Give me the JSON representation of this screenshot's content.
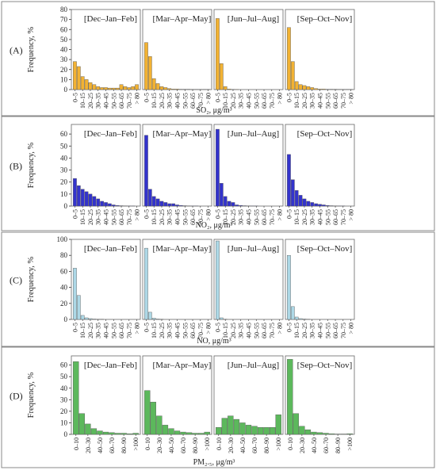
{
  "chart_data": [
    {
      "type": "bar",
      "row_label": "(A)",
      "xlabel": "SO₂, μg/m³",
      "ylabel": "Frequency, %",
      "ylim": [
        0,
        80
      ],
      "yticks": [
        0,
        10,
        20,
        30,
        40,
        50,
        60,
        70,
        80
      ],
      "categories": [
        "0–5",
        "5–10",
        "10–15",
        "15–20",
        "20–25",
        "25–30",
        "30–35",
        "35–40",
        "40–45",
        "45–50",
        "50–55",
        "55–60",
        "60–65",
        "65–70",
        "70–75",
        "75–80",
        "> 80"
      ],
      "tick_labels": [
        "0–5",
        "10–15",
        "20–25",
        "30–35",
        "40–45",
        "50–55",
        "60–65",
        "70–75",
        "> 80"
      ],
      "color": "#F2B233",
      "series": [
        {
          "name": "[Dec–Jan–Feb]",
          "values": [
            28,
            23,
            13,
            10,
            7,
            5,
            3,
            2,
            2,
            1.5,
            1.5,
            1.5,
            5,
            3,
            2,
            3,
            5
          ]
        },
        {
          "name": "[Mar–Apr–May]",
          "values": [
            47,
            33,
            11,
            6,
            3,
            2,
            1,
            0.5,
            0.5,
            0.3,
            0.3,
            0.3,
            0.2,
            0.2,
            0.2,
            0.2,
            0.2
          ]
        },
        {
          "name": "[Jun–Jul–Aug]",
          "values": [
            71,
            26,
            3,
            0.5,
            0.2,
            0.1,
            0,
            0,
            0,
            0,
            0,
            0,
            0,
            0,
            0,
            0,
            0
          ]
        },
        {
          "name": "[Sep–Oct–Nov]",
          "values": [
            62,
            28,
            8,
            5,
            4,
            3,
            2,
            1,
            0.5,
            0.5,
            0.3,
            0.3,
            0.3,
            0.2,
            0.2,
            0.2,
            0.2
          ]
        }
      ]
    },
    {
      "type": "bar",
      "row_label": "(B)",
      "xlabel": "NO₂, μg/m³",
      "ylabel": "Frequency, %",
      "ylim": [
        0,
        68
      ],
      "yticks": [
        0,
        10,
        20,
        30,
        40,
        50,
        60
      ],
      "categories": [
        "0–5",
        "5–10",
        "10–15",
        "15–20",
        "20–25",
        "25–30",
        "30–35",
        "35–40",
        "40–45",
        "45–50",
        "50–55",
        "55–60",
        "60–65",
        "65–70",
        "70–75",
        "75–80",
        "> 80"
      ],
      "tick_labels": [
        "0–5",
        "10–15",
        "20–25",
        "30–35",
        "40–45",
        "50–55",
        "60–65",
        "70–75",
        "> 80"
      ],
      "color": "#3333CC",
      "series": [
        {
          "name": "[Dec–Jan–Feb]",
          "values": [
            23,
            17,
            14,
            12,
            10,
            8,
            6,
            4,
            3,
            2,
            1,
            0.5,
            0.3,
            0.2,
            0.1,
            0.1,
            0
          ]
        },
        {
          "name": "[Mar–Apr–May]",
          "values": [
            59,
            14,
            8,
            6,
            4,
            3,
            2,
            2,
            1,
            0.5,
            0.3,
            0.2,
            0.1,
            0.1,
            0,
            0,
            0
          ]
        },
        {
          "name": "[Jun–Jul–Aug]",
          "values": [
            64,
            19,
            8,
            4,
            3,
            1,
            0.5,
            0.3,
            0.2,
            0.1,
            0.1,
            0,
            0,
            0,
            0,
            0,
            0
          ]
        },
        {
          "name": "[Sep–Oct–Nov]",
          "values": [
            43,
            22,
            13,
            9,
            6,
            4,
            3,
            2,
            1.5,
            1,
            0.5,
            0.3,
            0.2,
            0.1,
            0.1,
            0,
            0
          ]
        }
      ]
    },
    {
      "type": "bar",
      "row_label": "(C)",
      "xlabel": "NO, μg/m³",
      "ylabel": "Frequency, %",
      "ylim": [
        0,
        100
      ],
      "yticks": [
        0,
        20,
        40,
        60,
        80,
        100
      ],
      "categories": [
        "0–5",
        "5–10",
        "10–15",
        "15–20",
        "20–25",
        "25–30",
        "30–35",
        "35–40",
        "40–45",
        "45–50",
        "50–55",
        "55–60",
        "60–65",
        "65–70",
        "70–75",
        "75–80",
        "> 80"
      ],
      "tick_labels": [
        "0–5",
        "10–15",
        "20–25",
        "30–35",
        "40–45",
        "50–55",
        "60–65",
        "70–75",
        "> 80"
      ],
      "color": "#ADD8E6",
      "series": [
        {
          "name": "[Dec–Jan–Feb]",
          "values": [
            64,
            30,
            5,
            2,
            1,
            0.5,
            0.3,
            0.2,
            0,
            0,
            0,
            0,
            0,
            0,
            0,
            0,
            0
          ]
        },
        {
          "name": "[Mar–Apr–May]",
          "values": [
            89,
            9,
            1.5,
            0.5,
            0.2,
            0,
            0,
            0,
            0,
            0,
            0,
            0,
            0,
            0,
            0,
            0,
            0
          ]
        },
        {
          "name": "[Jun–Jul–Aug]",
          "values": [
            98,
            2,
            0.3,
            0,
            0,
            0,
            0,
            0,
            0,
            0,
            0,
            0,
            0,
            0,
            0,
            0,
            0
          ]
        },
        {
          "name": "[Sep–Oct–Nov]",
          "values": [
            80,
            16,
            3,
            1,
            0.5,
            0.2,
            0,
            0,
            0,
            0,
            0,
            0,
            0,
            0,
            0,
            0,
            0
          ]
        }
      ]
    },
    {
      "type": "bar",
      "row_label": "(D)",
      "xlabel": "PM₂.₅, μg/m³",
      "ylabel": "Frequency, %",
      "ylim": [
        0,
        68
      ],
      "yticks": [
        0,
        10,
        20,
        30,
        40,
        50,
        60
      ],
      "categories": [
        "0–10",
        "10–20",
        "20–30",
        "30–40",
        "40–50",
        "50–60",
        "60–70",
        "70–80",
        "80–90",
        "90–100",
        ">100"
      ],
      "tick_labels": [
        "0–10",
        "20–30",
        "40–50",
        "60–70",
        "80–90",
        ">100"
      ],
      "color": "#5CB85C",
      "series": [
        {
          "name": "[Dec–Jan–Feb]",
          "values": [
            63,
            18,
            9,
            5,
            3,
            2,
            1.5,
            1,
            1,
            0.5,
            1
          ]
        },
        {
          "name": "[Mar–Apr–May]",
          "values": [
            38,
            28,
            16,
            8,
            5,
            3,
            2,
            1.5,
            1,
            1,
            2
          ]
        },
        {
          "name": "[Jun–Jul–Aug]",
          "values": [
            6,
            14,
            16,
            13,
            10,
            8,
            7,
            6,
            6,
            6,
            17
          ]
        },
        {
          "name": "[Sep–Oct–Nov]",
          "values": [
            65,
            18,
            7,
            4,
            2,
            1.5,
            1,
            0.5,
            0.3,
            0.3,
            0.5
          ]
        }
      ]
    }
  ]
}
